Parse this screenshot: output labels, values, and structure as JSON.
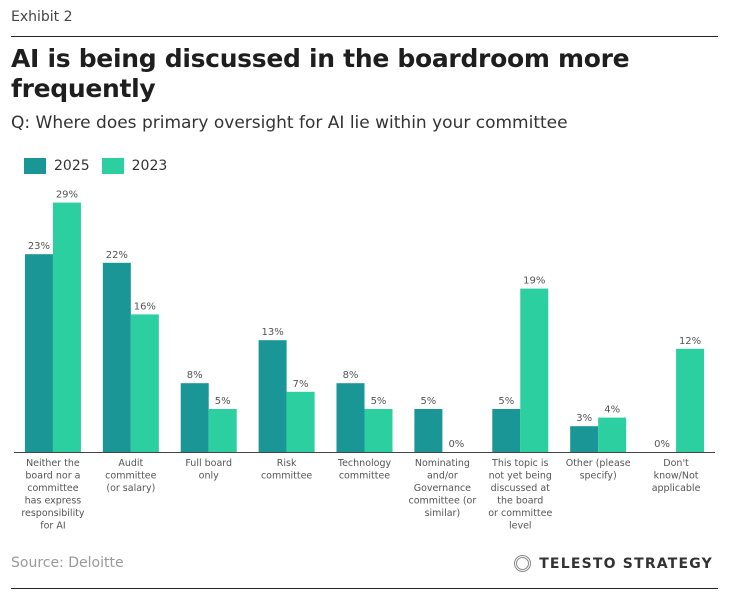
{
  "header": {
    "exhibit": "Exhibit 2",
    "title": "AI is being discussed in the boardroom more frequently",
    "subtitle": "Q: Where does primary oversight for AI lie within your committee"
  },
  "footer": {
    "source": "Source: Deloitte",
    "brand": "TELESTO STRATEGY",
    "brand_icon": "ring-logo-icon"
  },
  "colors": {
    "2025": "#1a9696",
    "2023": "#2ccfa0",
    "axis": "#444444",
    "label": "#555555"
  },
  "chart_data": {
    "type": "bar",
    "title": "AI is being discussed in the boardroom more frequently",
    "subtitle": "Q: Where does primary oversight for AI lie within your committee",
    "xlabel": "",
    "ylabel": "",
    "ylim": [
      0,
      30
    ],
    "grid": false,
    "legend_position": "top-left",
    "categories": [
      [
        "Neither the",
        "board nor a",
        "committee",
        "has express",
        "responsibility",
        "for AI"
      ],
      [
        "Audit",
        "committee",
        "(or salary)"
      ],
      [
        "Full board",
        "only"
      ],
      [
        "Risk",
        "committee"
      ],
      [
        "Technology",
        "committee"
      ],
      [
        "Nominating",
        "and/or",
        "Governance",
        "committee (or",
        "similar)"
      ],
      [
        "This topic is",
        "not yet being",
        "discussed at",
        "the board",
        "or committee",
        "level"
      ],
      [
        "Other (please",
        "specify)"
      ],
      [
        "Don't",
        "know/Not",
        "applicable"
      ]
    ],
    "series": [
      {
        "name": "2025",
        "values": [
          23,
          22,
          8,
          13,
          8,
          5,
          5,
          3,
          0
        ],
        "labels": [
          "23%",
          "22%",
          "8%",
          "13%",
          "8%",
          "5%",
          "5%",
          "3%",
          "0%"
        ]
      },
      {
        "name": "2023",
        "values": [
          29,
          16,
          5,
          7,
          5,
          0,
          19,
          4,
          12
        ],
        "labels": [
          "29%",
          "16%",
          "5%",
          "7%",
          "5%",
          "0%",
          "19%",
          "4%",
          "12%"
        ]
      }
    ]
  }
}
